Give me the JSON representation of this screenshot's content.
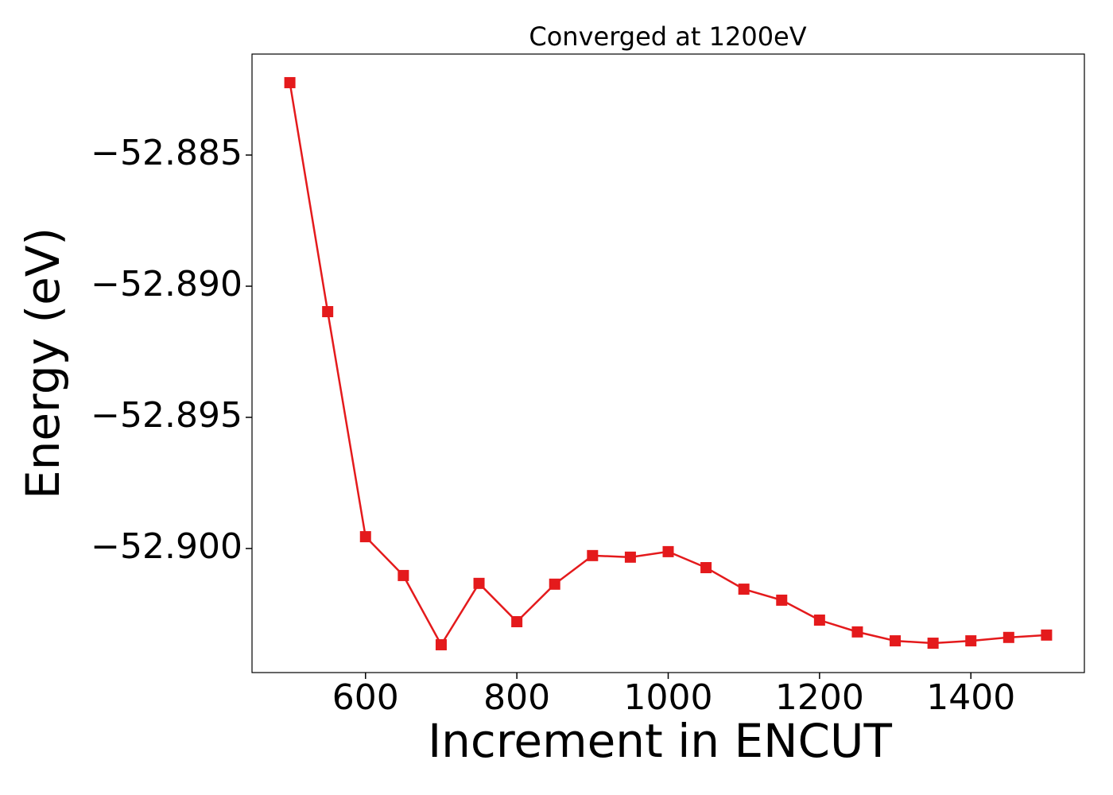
{
  "chart_data": {
    "type": "line",
    "title": "Converged at 1200eV",
    "x_label": "Increment in ENCUT",
    "y_label": "Energy (eV)",
    "x": [
      500,
      550,
      600,
      650,
      700,
      750,
      800,
      850,
      900,
      950,
      1000,
      1050,
      1100,
      1150,
      1200,
      1250,
      1300,
      1350,
      1400,
      1450,
      1500
    ],
    "series": [
      {
        "color": "#e41a1c",
        "marker": "square",
        "values": [
          -52.88224,
          -52.89097,
          -52.89955,
          -52.90103,
          -52.90367,
          -52.90133,
          -52.90279,
          -52.90136,
          -52.90027,
          -52.90033,
          -52.90012,
          -52.90073,
          -52.90155,
          -52.90197,
          -52.90273,
          -52.90318,
          -52.90352,
          -52.90361,
          -52.90352,
          -52.90339,
          -52.9033
        ]
      }
    ],
    "xlim": [
      450,
      1550
    ],
    "xticks": [
      600,
      800,
      1000,
      1200,
      1400
    ],
    "ylim": [
      -52.90473,
      -52.88115
    ],
    "yticks": [
      {
        "value": -52.885,
        "label": "−52.885"
      },
      {
        "value": -52.89,
        "label": "−52.890"
      },
      {
        "value": -52.895,
        "label": "−52.895"
      },
      {
        "value": -52.9,
        "label": "−52.900"
      }
    ],
    "grid": false
  }
}
